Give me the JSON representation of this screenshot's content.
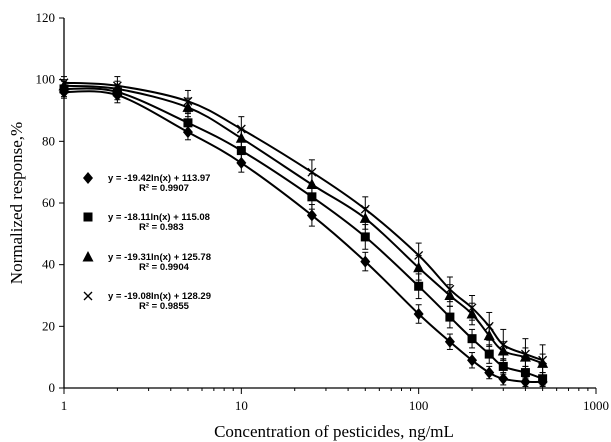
{
  "chart_data": {
    "type": "scatter",
    "title": "",
    "xlabel": "Concentration of pesticides, ng/mL",
    "ylabel": "Normalized response,%",
    "xscale": "log",
    "xlim": [
      1,
      1000
    ],
    "ylim": [
      0,
      120
    ],
    "x_ticks": [
      "1",
      "10",
      "100",
      "1000"
    ],
    "y_ticks": [
      "0",
      "20",
      "40",
      "60",
      "80",
      "100",
      "120"
    ],
    "grid": false,
    "legend_placement": "left-middle",
    "series": [
      {
        "marker": "diamond",
        "equation": "y = -19.42ln(x) + 113.97",
        "r2": "R² = 0.9907",
        "x": [
          1,
          2,
          5,
          10,
          25,
          50,
          100,
          150,
          200,
          250,
          300,
          400,
          500
        ],
        "y": [
          96,
          95,
          83,
          73,
          56,
          41,
          24,
          15,
          9,
          5,
          3,
          2,
          2
        ],
        "err": [
          2,
          2.5,
          2.5,
          3,
          3.5,
          3,
          3,
          2.5,
          2.5,
          2,
          2,
          1.5,
          1.5
        ]
      },
      {
        "marker": "square",
        "equation": "y = -18.11ln(x) + 115.08",
        "r2": "R² = 0.983",
        "x": [
          1,
          2,
          5,
          10,
          25,
          50,
          100,
          150,
          200,
          250,
          300,
          400,
          500
        ],
        "y": [
          97,
          96,
          86,
          77,
          62,
          49,
          33,
          23,
          16,
          11,
          7,
          5,
          3
        ],
        "err": [
          2.5,
          2.5,
          3,
          3.5,
          4,
          4,
          4,
          3.5,
          3,
          3,
          2.5,
          2,
          2
        ]
      },
      {
        "marker": "triangle",
        "equation": "y = -19.31ln(x) + 125.78",
        "r2": "R² = 0.9904",
        "x": [
          1,
          2,
          5,
          10,
          25,
          50,
          100,
          150,
          200,
          250,
          300,
          400,
          500
        ],
        "y": [
          98,
          97,
          91,
          81,
          66,
          55,
          39,
          30,
          24,
          17,
          12,
          10,
          8
        ],
        "err": [
          2,
          2.5,
          3,
          3,
          3.5,
          3.5,
          4,
          3.5,
          3.5,
          3.5,
          3,
          3,
          3
        ]
      },
      {
        "marker": "x",
        "equation": "y = -19.08ln(x) + 128.29",
        "r2": "R² = 0.9855",
        "x": [
          1,
          2,
          5,
          10,
          25,
          50,
          100,
          150,
          200,
          250,
          300,
          400,
          500
        ],
        "y": [
          99,
          98,
          93,
          84,
          70,
          58,
          43,
          32,
          26,
          20,
          14,
          11,
          9
        ],
        "err": [
          2,
          3,
          3.5,
          4,
          4,
          4,
          4,
          4,
          4,
          4.5,
          5,
          5,
          5
        ]
      }
    ]
  },
  "colors": {
    "ink": "#000000",
    "background": "#ffffff"
  }
}
